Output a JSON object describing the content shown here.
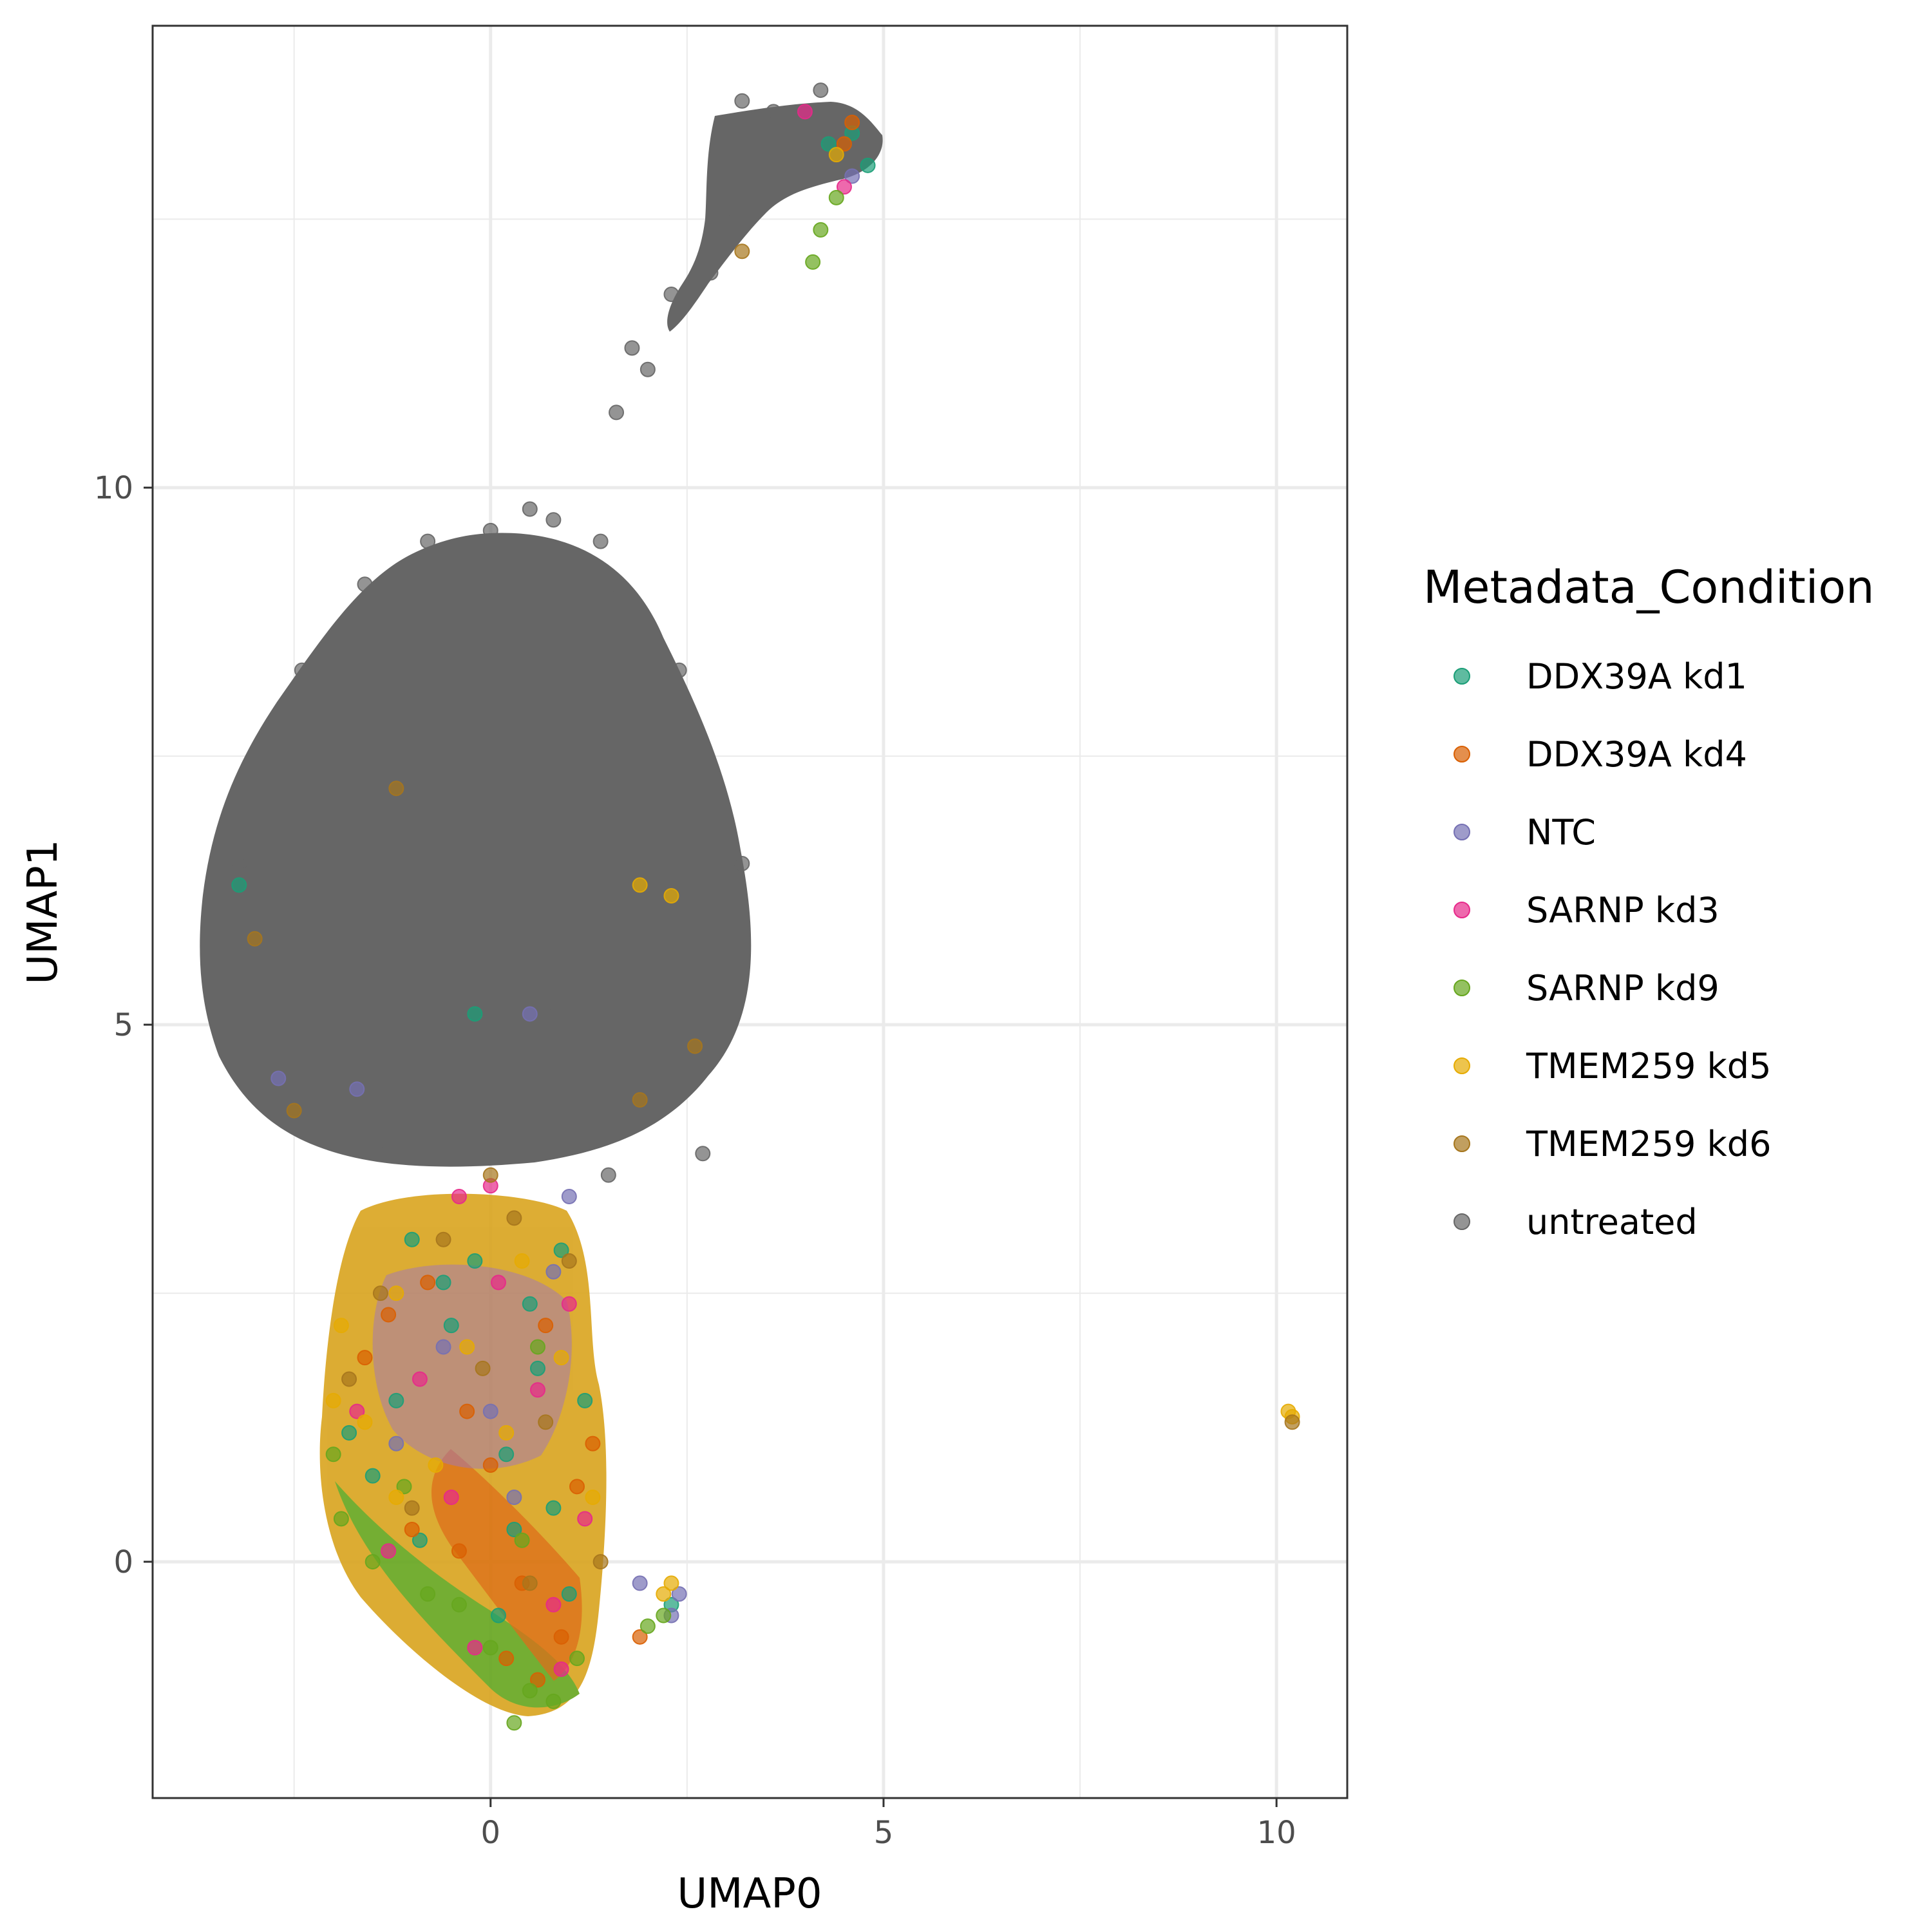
{
  "chart_data": {
    "type": "scatter",
    "title": "",
    "xlabel": "UMAP0",
    "ylabel": "UMAP1",
    "xlim": [
      -4.3,
      10.9
    ],
    "ylim": [
      -2.2,
      14.3
    ],
    "x_ticks": [
      0,
      5,
      10
    ],
    "x_tick_labels": [
      "0",
      "5",
      "10"
    ],
    "y_ticks": [
      0,
      5,
      10
    ],
    "y_tick_labels": [
      "0",
      "5",
      "10"
    ],
    "x_minor_ticks": [
      -2.5,
      2.5,
      7.5
    ],
    "y_minor_ticks": [
      2.5,
      7.5,
      12.5
    ],
    "grid": true,
    "legend": {
      "title": "Metadata_Condition",
      "position": "right",
      "entries": [
        "DDX39A kd1",
        "DDX39A kd4",
        "NTC",
        "SARNP kd3",
        "SARNP kd9",
        "TMEM259 kd5",
        "TMEM259 kd6",
        "untreated"
      ]
    },
    "series": [
      {
        "name": "DDX39A kd1",
        "color": "#1b9e77",
        "x": [
          -1.2,
          -0.5,
          0.2,
          0.8,
          -1.5,
          -0.2,
          0.6,
          1.0,
          -0.9,
          0.3,
          -1.8,
          0.1,
          1.2,
          -0.6,
          0.5,
          4.3,
          4.8,
          4.6,
          -3.2,
          -0.2,
          2.3,
          -1.0,
          0.9
        ],
        "y": [
          1.5,
          2.2,
          1.0,
          0.5,
          0.8,
          2.8,
          1.8,
          -0.3,
          0.2,
          0.3,
          1.2,
          -0.5,
          1.5,
          2.6,
          2.4,
          13.2,
          13.0,
          13.3,
          6.3,
          5.1,
          -0.4,
          3.0,
          2.9
        ]
      },
      {
        "name": "DDX39A kd4",
        "color": "#d95f02",
        "x": [
          -1.0,
          0.4,
          1.1,
          -0.3,
          0.9,
          -1.6,
          0.0,
          0.7,
          -0.8,
          1.3,
          0.2,
          -0.4,
          1.9,
          4.6,
          4.5,
          0.6,
          -1.3
        ],
        "y": [
          0.3,
          -0.2,
          0.7,
          1.4,
          -0.7,
          1.9,
          0.9,
          2.2,
          2.6,
          1.1,
          -0.9,
          0.1,
          -0.7,
          13.4,
          13.2,
          -1.1,
          2.3
        ]
      },
      {
        "name": "NTC",
        "color": "#7570b3",
        "x": [
          1.9,
          2.3,
          2.4,
          -0.6,
          0.0,
          0.3,
          -1.2,
          0.8,
          -2.7,
          4.6,
          0.5,
          -1.7,
          1.0
        ],
        "y": [
          -0.2,
          -0.5,
          -0.3,
          2.0,
          1.4,
          0.6,
          1.1,
          2.7,
          4.5,
          12.9,
          5.1,
          4.4,
          3.4
        ]
      },
      {
        "name": "SARNP kd3",
        "color": "#e7298a",
        "x": [
          -0.5,
          0.6,
          -1.3,
          1.0,
          0.1,
          -0.9,
          0.8,
          -0.2,
          1.2,
          4.0,
          4.5,
          -0.4,
          0.0,
          0.9,
          -1.7
        ],
        "y": [
          0.6,
          1.6,
          0.1,
          2.4,
          2.6,
          1.7,
          -0.4,
          -0.8,
          0.4,
          13.5,
          12.8,
          3.4,
          3.5,
          -1.0,
          1.4
        ]
      },
      {
        "name": "SARNP kd9",
        "color": "#66a61e",
        "x": [
          -0.4,
          0.0,
          0.5,
          0.8,
          -1.5,
          -1.9,
          -0.8,
          1.1,
          0.3,
          -1.1,
          4.1,
          4.2,
          4.4,
          2.0,
          2.2,
          0.4,
          0.6,
          -2.0
        ],
        "y": [
          -0.4,
          -0.8,
          -1.2,
          -1.3,
          0.0,
          0.4,
          -0.3,
          -0.9,
          -1.5,
          0.7,
          12.1,
          12.4,
          12.7,
          -0.6,
          -0.5,
          0.2,
          2.0,
          1.0
        ]
      },
      {
        "name": "TMEM259 kd5",
        "color": "#e6ab02",
        "x": [
          -1.9,
          -2.0,
          -1.2,
          -0.3,
          0.4,
          1.3,
          0.9,
          -0.7,
          -1.6,
          0.2,
          2.2,
          2.3,
          10.15,
          10.2,
          4.4,
          1.9,
          2.3,
          -1.2
        ],
        "y": [
          2.2,
          1.5,
          2.5,
          2.0,
          2.8,
          0.6,
          1.9,
          0.9,
          1.3,
          1.2,
          -0.3,
          -0.2,
          1.4,
          1.35,
          13.1,
          6.3,
          6.2,
          0.6
        ]
      },
      {
        "name": "TMEM259 kd6",
        "color": "#a6761d",
        "x": [
          -1.4,
          -0.6,
          0.3,
          1.0,
          -0.1,
          0.7,
          -1.8,
          -1.0,
          0.5,
          1.4,
          3.2,
          -1.2,
          -3.0,
          0.0,
          -2.5,
          2.6,
          10.2,
          1.9
        ],
        "y": [
          2.5,
          3.0,
          3.2,
          2.8,
          1.8,
          1.3,
          1.7,
          0.5,
          -0.2,
          0.0,
          12.2,
          7.2,
          5.8,
          3.6,
          4.2,
          4.8,
          1.3,
          4.3
        ]
      },
      {
        "name": "untreated",
        "color": "#666666",
        "x": [
          0.0,
          -0.8,
          0.8,
          -1.6,
          1.6,
          -2.4,
          2.4,
          -3.2,
          3.2,
          0.5,
          0.8,
          1.4,
          -1.4,
          1.5,
          2.7,
          2.0,
          1.8,
          1.6,
          3.2,
          4.2,
          3.6,
          3.0,
          2.3,
          2.8,
          0.7
        ],
        "y": [
          9.6,
          9.5,
          9.4,
          9.1,
          9.1,
          8.3,
          8.3,
          6.5,
          6.5,
          9.8,
          9.7,
          9.5,
          3.8,
          3.6,
          3.8,
          11.1,
          11.3,
          10.7,
          13.6,
          13.7,
          13.5,
          12.6,
          11.8,
          12.0,
          5.2
        ]
      }
    ]
  }
}
